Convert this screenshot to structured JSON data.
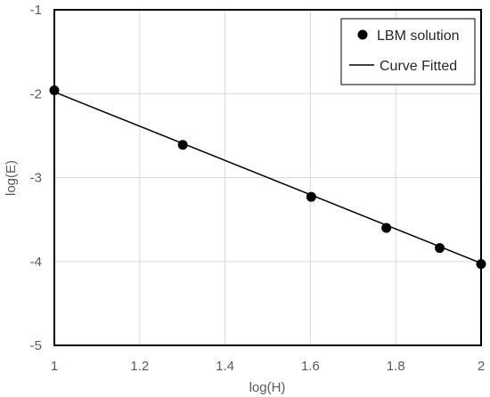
{
  "chart_data": {
    "type": "scatter",
    "xlabel": "log(H)",
    "ylabel": "log(E)",
    "xlim": [
      1,
      2
    ],
    "ylim": [
      -5,
      -1
    ],
    "x_ticks": [
      "1",
      "1.2",
      "1.4",
      "1.6",
      "1.8",
      "2"
    ],
    "y_ticks": [
      "-1",
      "-2",
      "-3",
      "-4",
      "-5"
    ],
    "grid": true,
    "legend_position": "top-right",
    "series": [
      {
        "name": "LBM solution",
        "kind": "markers",
        "color": "#000000",
        "x": [
          1.0,
          1.301,
          1.602,
          1.778,
          1.903,
          2.0
        ],
        "y": [
          -1.96,
          -2.61,
          -3.23,
          -3.6,
          -3.84,
          -4.03
        ]
      },
      {
        "name": "Curve Fitted",
        "kind": "line",
        "color": "#000000",
        "x": [
          1.0,
          2.0
        ],
        "y": [
          -1.98,
          -4.02
        ]
      }
    ]
  }
}
